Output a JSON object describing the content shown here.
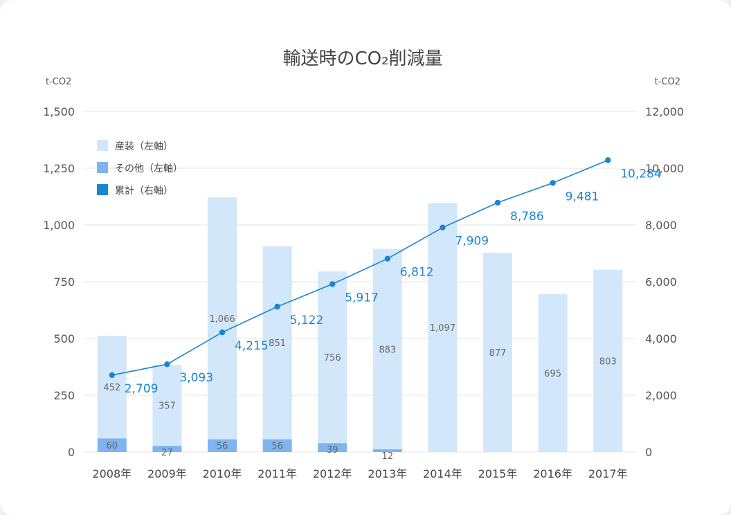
{
  "chart_data": {
    "type": "bar",
    "title": "輸送時のCO₂削減量",
    "left_axis_unit": "t-CO2",
    "right_axis_unit": "t-CO2",
    "categories": [
      "2008年",
      "2009年",
      "2010年",
      "2011年",
      "2012年",
      "2013年",
      "2014年",
      "2015年",
      "2016年",
      "2017年"
    ],
    "left_ylim": [
      0,
      1500
    ],
    "left_ticks": [
      "0",
      "250",
      "500",
      "750",
      "1,000",
      "1,250",
      "1,500"
    ],
    "right_ylim": [
      0,
      12000
    ],
    "right_ticks": [
      "0",
      "2,000",
      "4,000",
      "6,000",
      "8,000",
      "10,000",
      "12,000"
    ],
    "series": [
      {
        "name": "その他（左軸）",
        "axis": "left",
        "kind": "stacked-bar",
        "color": "#7fb4f2",
        "values": [
          60,
          27,
          56,
          56,
          39,
          12,
          0,
          0,
          0,
          0
        ],
        "labels": [
          "60",
          "27",
          "56",
          "56",
          "39",
          "12",
          "",
          "",
          "",
          ""
        ]
      },
      {
        "name": "産装（左軸）",
        "axis": "left",
        "kind": "stacked-bar",
        "color": "#d3e7fa",
        "values": [
          452,
          357,
          1066,
          851,
          756,
          883,
          1097,
          877,
          695,
          803
        ],
        "labels": [
          "452",
          "357",
          "1,066",
          "851",
          "756",
          "883",
          "1,097",
          "877",
          "695",
          "803"
        ]
      },
      {
        "name": "累計（右軸）",
        "axis": "right",
        "kind": "line",
        "color": "#1a86d0",
        "values": [
          2709,
          3093,
          4215,
          5122,
          5917,
          6812,
          7909,
          8786,
          9481,
          10284
        ],
        "labels": [
          "2,709",
          "3,093",
          "4,215",
          "5,122",
          "5,917",
          "6,812",
          "7,909",
          "8,786",
          "9,481",
          "10,284"
        ]
      }
    ],
    "legend": {
      "placement": "top-left",
      "items": [
        {
          "label": "産装（左軸）",
          "color": "#d3e7fa"
        },
        {
          "label": "その他（左軸）",
          "color": "#7fb4f2"
        },
        {
          "label": "累計（右軸）",
          "color": "#1a86d0"
        }
      ]
    },
    "grid": true
  }
}
